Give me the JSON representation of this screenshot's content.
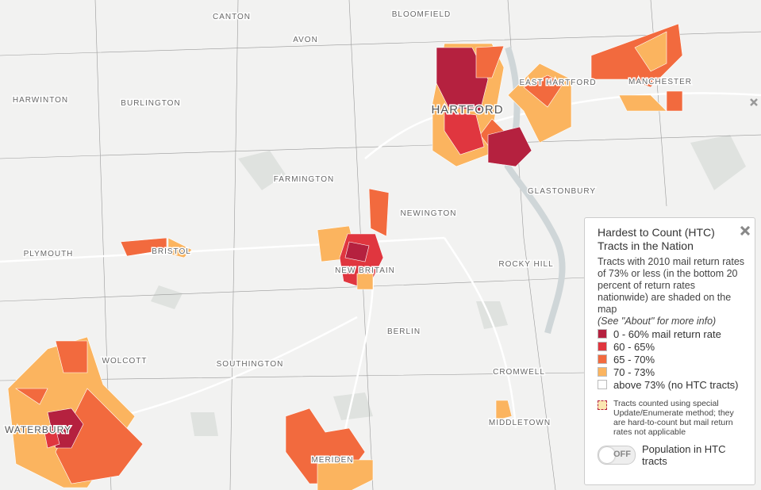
{
  "map": {
    "places": [
      "CANTON",
      "BLOOMFIELD",
      "AVON",
      "HARWINTON",
      "BURLINGTON",
      "EAST HARTFORD",
      "MANCHESTER",
      "HARTFORD",
      "FARMINGTON",
      "GLASTONBURY",
      "NEWINGTON",
      "PLYMOUTH",
      "BRISTOL",
      "ROCKY HILL",
      "NEW BRITAIN",
      "BERLIN",
      "WOLCOTT",
      "SOUTHINGTON",
      "CROMWELL",
      "MIDDLETOWN",
      "WATERBURY",
      "MERIDEN"
    ]
  },
  "legend": {
    "title": "Hardest to Count (HTC) Tracts in the Nation",
    "description": "Tracts with 2010 mail return rates of 73% or less (in the bottom 20 percent of return rates nationwide) are shaded on the map",
    "note": "(See \"About\" for more info)",
    "classes": [
      {
        "label": "0 - 60% mail return rate",
        "color": "#b5213f"
      },
      {
        "label": "60 - 65%",
        "color": "#e0363f"
      },
      {
        "label": "65 - 70%",
        "color": "#f26a3e"
      },
      {
        "label": "70 - 73%",
        "color": "#fbb45f"
      },
      {
        "label": "above 73% (no HTC tracts)",
        "color": "#ffffff"
      }
    ],
    "special_note": "Tracts counted using special Update/Enumerate method; they are hard-to-count but mail return rates not applicable",
    "toggle": {
      "state": "OFF",
      "label": "Population in HTC tracts"
    }
  }
}
